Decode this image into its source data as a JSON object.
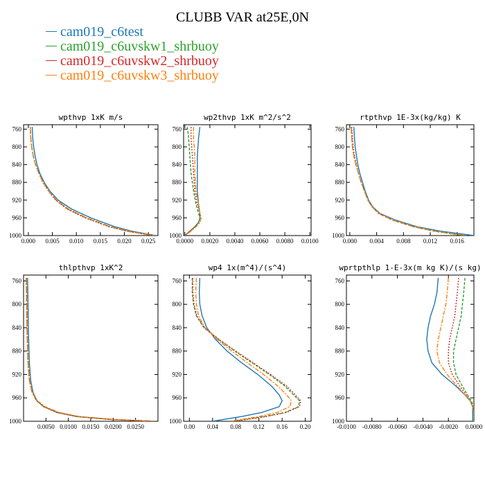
{
  "title": "CLUBB VAR at25E,0N",
  "legend": [
    {
      "name": "cam019_c6test",
      "color": "#1f77b4"
    },
    {
      "name": "cam019_c6uvskw1_shrbuoy",
      "color": "#2ca02c"
    },
    {
      "name": "cam019_c6uvskw2_shrbuoy",
      "color": "#d62728"
    },
    {
      "name": "cam019_c6uvskw3_shrbuoy",
      "color": "#ff7f0e"
    }
  ],
  "chart_data": [
    {
      "type": "line",
      "title": "wpthvp  1xK m/s",
      "ylim": [
        1000,
        750
      ],
      "yticks": [
        760,
        800,
        840,
        880,
        920,
        960,
        1000
      ],
      "xlim": [
        -0.001,
        0.027
      ],
      "xticks": [
        0.0,
        0.005,
        0.01,
        0.015,
        0.02,
        0.025
      ],
      "xtick_labels": [
        "0.000",
        "0.005",
        "0.010",
        "0.015",
        "0.020",
        "0.025"
      ],
      "y": [
        755,
        780,
        800,
        820,
        840,
        860,
        880,
        900,
        920,
        940,
        960,
        980,
        990,
        1000
      ],
      "series": [
        {
          "x": [
            0.0008,
            0.0009,
            0.0011,
            0.0014,
            0.0018,
            0.0024,
            0.0033,
            0.0045,
            0.0062,
            0.009,
            0.013,
            0.018,
            0.0215,
            0.0265
          ]
        },
        {
          "x": [
            0.0004,
            0.0005,
            0.0007,
            0.001,
            0.0015,
            0.0022,
            0.0031,
            0.0043,
            0.0058,
            0.0082,
            0.012,
            0.017,
            0.0205,
            0.026
          ]
        },
        {
          "x": [
            0.0004,
            0.0005,
            0.0007,
            0.001,
            0.0015,
            0.0022,
            0.003,
            0.0042,
            0.0057,
            0.008,
            0.0118,
            0.0168,
            0.0205,
            0.026
          ]
        },
        {
          "x": [
            0.0004,
            0.0005,
            0.0007,
            0.001,
            0.0015,
            0.0022,
            0.0031,
            0.0043,
            0.0059,
            0.0084,
            0.0122,
            0.0172,
            0.021,
            0.0262
          ]
        }
      ]
    },
    {
      "type": "line",
      "title": "wp2thvp  1xK m^2/s^2",
      "ylim": [
        1000,
        750
      ],
      "yticks": [
        760,
        800,
        840,
        880,
        920,
        960,
        1000
      ],
      "xlim": [
        -0.0001,
        0.0101
      ],
      "xticks": [
        0.0,
        0.002,
        0.004,
        0.006,
        0.008,
        0.01
      ],
      "xtick_labels": [
        "0.0000",
        "0.0020",
        "0.0040",
        "0.0060",
        "0.0080",
        "0.0100"
      ],
      "y": [
        755,
        780,
        820,
        860,
        900,
        930,
        950,
        960,
        970,
        980,
        990,
        1000
      ],
      "series": [
        {
          "x": [
            0.0012,
            0.0011,
            0.001,
            0.001,
            0.001,
            0.0011,
            0.0012,
            0.0012,
            0.0011,
            0.0008,
            0.0004,
            0.0
          ]
        },
        {
          "x": [
            0.0002,
            0.0003,
            0.0004,
            0.0005,
            0.0007,
            0.0009,
            0.0011,
            0.0012,
            0.0011,
            0.0008,
            0.0004,
            0.0
          ]
        },
        {
          "x": [
            0.0005,
            0.0005,
            0.0006,
            0.0007,
            0.0008,
            0.001,
            0.0012,
            0.0013,
            0.0012,
            0.0009,
            0.0004,
            0.0
          ]
        },
        {
          "x": [
            0.0007,
            0.0007,
            0.0008,
            0.0008,
            0.0009,
            0.0011,
            0.0012,
            0.0013,
            0.0012,
            0.0009,
            0.0005,
            0.0
          ]
        }
      ]
    },
    {
      "type": "line",
      "title": "rtpthvp  1E-3x(kg/kg) K",
      "ylim": [
        1000,
        750
      ],
      "yticks": [
        760,
        800,
        840,
        880,
        920,
        960,
        1000
      ],
      "xlim": [
        -0.0005,
        0.0185
      ],
      "xticks": [
        0.0,
        0.004,
        0.008,
        0.012,
        0.016
      ],
      "xtick_labels": [
        "0.000",
        "0.004",
        "0.008",
        "0.012",
        "0.016"
      ],
      "y": [
        755,
        780,
        800,
        820,
        840,
        860,
        880,
        900,
        920,
        935,
        950,
        965,
        980,
        990,
        1000
      ],
      "series": [
        {
          "x": [
            0.0006,
            0.0007,
            0.0008,
            0.001,
            0.0012,
            0.0015,
            0.0019,
            0.0023,
            0.0028,
            0.0034,
            0.0045,
            0.0068,
            0.01,
            0.0135,
            0.0185
          ]
        },
        {
          "x": [
            0.0002,
            0.0003,
            0.0004,
            0.0006,
            0.0009,
            0.0013,
            0.0017,
            0.0022,
            0.0027,
            0.0033,
            0.0043,
            0.0063,
            0.0095,
            0.0125,
            0.017
          ]
        },
        {
          "x": [
            0.0003,
            0.0004,
            0.0005,
            0.0007,
            0.001,
            0.0013,
            0.0017,
            0.0022,
            0.0027,
            0.0033,
            0.0043,
            0.0064,
            0.0095,
            0.0126,
            0.0172
          ]
        },
        {
          "x": [
            0.0002,
            0.0003,
            0.0004,
            0.0006,
            0.0009,
            0.0013,
            0.0017,
            0.0022,
            0.0027,
            0.0033,
            0.0044,
            0.0065,
            0.0097,
            0.0128,
            0.0174
          ]
        }
      ]
    },
    {
      "type": "line",
      "title": "thlpthvp  1xK^2",
      "ylim": [
        1000,
        750
      ],
      "yticks": [
        760,
        800,
        840,
        880,
        920,
        960,
        1000
      ],
      "xlim": [
        0.0,
        0.03
      ],
      "xticks": [
        0.005,
        0.01,
        0.015,
        0.02,
        0.025
      ],
      "xtick_labels": [
        "0.0050",
        "0.0100",
        "0.0150",
        "0.0200",
        "0.0250"
      ],
      "y": [
        755,
        800,
        850,
        900,
        930,
        950,
        965,
        975,
        985,
        992,
        997,
        1000
      ],
      "series": [
        {
          "x": [
            0.0009,
            0.001,
            0.0011,
            0.0013,
            0.0016,
            0.0021,
            0.003,
            0.0045,
            0.0075,
            0.012,
            0.02,
            0.0295
          ]
        },
        {
          "x": [
            0.0006,
            0.0007,
            0.0008,
            0.001,
            0.0013,
            0.0019,
            0.0029,
            0.0045,
            0.0075,
            0.0118,
            0.0195,
            0.029
          ]
        },
        {
          "x": [
            0.0006,
            0.0007,
            0.0008,
            0.001,
            0.0013,
            0.0019,
            0.0029,
            0.0045,
            0.0074,
            0.0118,
            0.0195,
            0.029
          ]
        },
        {
          "x": [
            0.0007,
            0.0008,
            0.0009,
            0.0011,
            0.0014,
            0.002,
            0.0031,
            0.0048,
            0.008,
            0.0125,
            0.0205,
            0.0295
          ]
        }
      ]
    },
    {
      "type": "line",
      "title": "wp4  1x(m^4)/(s^4)",
      "ylim": [
        1000,
        750
      ],
      "yticks": [
        760,
        800,
        840,
        880,
        920,
        960,
        1000
      ],
      "xlim": [
        -0.01,
        0.21
      ],
      "xticks": [
        0.0,
        0.04,
        0.08,
        0.12,
        0.16,
        0.2
      ],
      "xtick_labels": [
        "0.00",
        "0.04",
        "0.08",
        "0.12",
        "0.16",
        "0.20"
      ],
      "y": [
        755,
        780,
        800,
        820,
        840,
        860,
        880,
        900,
        920,
        940,
        955,
        965,
        975,
        985,
        992,
        1000
      ],
      "series": [
        {
          "x": [
            0.018,
            0.017,
            0.018,
            0.022,
            0.03,
            0.045,
            0.065,
            0.09,
            0.118,
            0.142,
            0.155,
            0.16,
            0.155,
            0.125,
            0.09,
            0.04
          ]
        },
        {
          "x": [
            0.005,
            0.005,
            0.007,
            0.012,
            0.025,
            0.05,
            0.078,
            0.108,
            0.138,
            0.165,
            0.18,
            0.19,
            0.188,
            0.165,
            0.13,
            0.075
          ]
        },
        {
          "x": [
            0.006,
            0.006,
            0.008,
            0.013,
            0.026,
            0.051,
            0.08,
            0.11,
            0.14,
            0.168,
            0.183,
            0.192,
            0.19,
            0.167,
            0.132,
            0.078
          ]
        },
        {
          "x": [
            0.012,
            0.011,
            0.012,
            0.016,
            0.027,
            0.048,
            0.073,
            0.1,
            0.128,
            0.153,
            0.168,
            0.176,
            0.173,
            0.152,
            0.12,
            0.07
          ]
        }
      ]
    },
    {
      "type": "line",
      "title": "wprtpthlp  1-E-3x(m kg K)/(s kg)",
      "ylim": [
        1000,
        750
      ],
      "yticks": [
        760,
        800,
        840,
        880,
        920,
        960,
        1000
      ],
      "xlim": [
        -0.01,
        0.0
      ],
      "xticks": [
        -0.01,
        -0.008,
        -0.006,
        -0.004,
        -0.002,
        0.0
      ],
      "xtick_labels": [
        "-0.0100",
        "-0.0080",
        "-0.0060",
        "-0.0040",
        "-0.0020",
        "0.0000"
      ],
      "y": [
        755,
        780,
        800,
        820,
        840,
        860,
        880,
        900,
        920,
        940,
        955,
        965,
        975,
        985,
        992,
        1000
      ],
      "series": [
        {
          "x": [
            -0.0028,
            -0.0029,
            -0.0031,
            -0.0034,
            -0.0036,
            -0.0037,
            -0.0036,
            -0.0033,
            -0.0025,
            -0.0014,
            -0.0007,
            -0.0003,
            -0.0001,
            -0.0001,
            -0.0001,
            -0.0001
          ]
        },
        {
          "x": [
            -0.0007,
            -0.0008,
            -0.0009,
            -0.001,
            -0.0012,
            -0.0014,
            -0.0016,
            -0.0016,
            -0.0014,
            -0.0009,
            -0.0005,
            -0.0002,
            0.0,
            0.0,
            0.0,
            0.0
          ]
        },
        {
          "x": [
            -0.0012,
            -0.0013,
            -0.0014,
            -0.0015,
            -0.0017,
            -0.0019,
            -0.002,
            -0.002,
            -0.0017,
            -0.0011,
            -0.0006,
            -0.0003,
            -0.0001,
            0.0,
            0.0,
            0.0
          ]
        },
        {
          "x": [
            -0.002,
            -0.0021,
            -0.0022,
            -0.0024,
            -0.0026,
            -0.0028,
            -0.0029,
            -0.0027,
            -0.0021,
            -0.0013,
            -0.0007,
            -0.0003,
            -0.0001,
            0.0,
            0.0,
            0.0
          ]
        }
      ]
    }
  ]
}
